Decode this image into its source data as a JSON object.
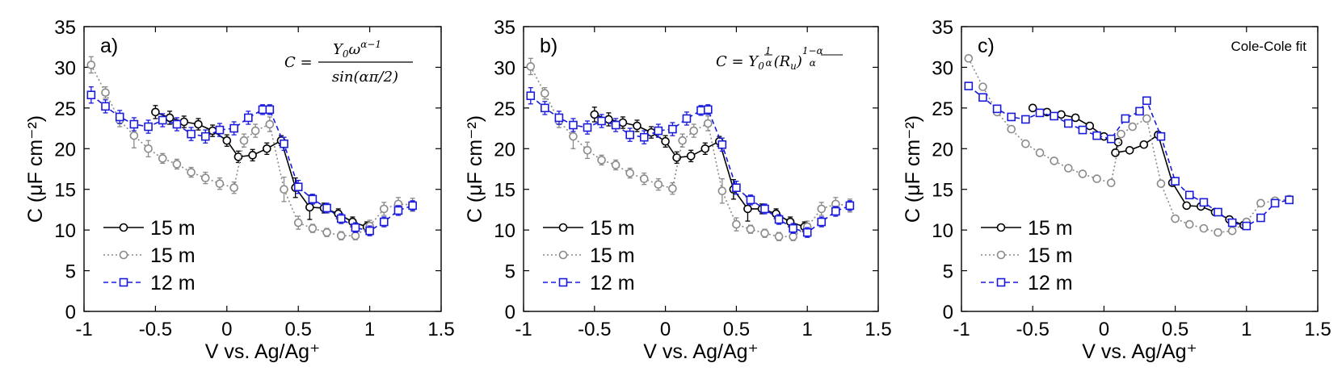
{
  "chart_data": [
    {
      "type": "line",
      "panel_label": "a)",
      "annotation": {
        "kind": "equation_a",
        "lhs": "C =",
        "num": "Y",
        "num_sub": "0",
        "num_omega": "ω",
        "num_sup": "α−1",
        "den": "sin(απ/2)"
      },
      "xlabel": "V vs. Ag/Ag⁺",
      "ylabel": "C (μF cm⁻²)",
      "xlim": [
        -1,
        1.5
      ],
      "ylim": [
        0,
        35
      ],
      "xticks": [
        "-1",
        "-0.5",
        "0",
        "0.5",
        "1",
        "1.5"
      ],
      "yticks": [
        "0",
        "5",
        "10",
        "15",
        "20",
        "25",
        "30",
        "35"
      ],
      "legend_position": "bottom-left",
      "grid": false,
      "series": [
        {
          "name": "15 m",
          "color": "#000000",
          "marker": "circle",
          "dash": "solid",
          "x": [
            -0.5,
            -0.4,
            -0.3,
            -0.2,
            -0.1,
            0.0,
            0.08,
            0.18,
            0.28,
            0.38,
            0.48,
            0.58,
            0.68,
            0.78,
            0.88,
            0.98
          ],
          "y": [
            24.5,
            23.8,
            23.3,
            23.0,
            22.2,
            21.0,
            19.0,
            19.2,
            20.0,
            21.0,
            15.2,
            12.8,
            12.7,
            12.0,
            11.0,
            10.4
          ],
          "err": [
            0.8,
            0.8,
            0.7,
            0.7,
            0.7,
            0.7,
            0.7,
            0.7,
            0.7,
            0.6,
            1.2,
            1.5,
            0.6,
            0.6,
            0.6,
            0.6
          ]
        },
        {
          "name": "15 m",
          "color": "#8a8a8a",
          "marker": "circle",
          "dash": "dotted",
          "x": [
            -0.95,
            -0.85,
            -0.75,
            -0.65,
            -0.55,
            -0.45,
            -0.35,
            -0.25,
            -0.15,
            -0.05,
            0.05,
            0.12,
            0.2,
            0.3,
            0.4,
            0.5,
            0.6,
            0.7,
            0.8,
            0.9,
            1.0,
            1.1,
            1.2,
            1.3
          ],
          "y": [
            30.3,
            26.9,
            23.5,
            21.6,
            20.0,
            18.8,
            18.1,
            17.1,
            16.4,
            15.7,
            15.2,
            21.0,
            22.2,
            23.0,
            15.0,
            10.9,
            10.2,
            9.7,
            9.3,
            9.3,
            10.5,
            12.6,
            13.2,
            13.1
          ],
          "err": [
            1.0,
            0.7,
            0.8,
            1.5,
            1.0,
            0.6,
            0.6,
            0.6,
            0.7,
            0.7,
            0.7,
            0.8,
            0.8,
            0.9,
            1.5,
            0.8,
            0.5,
            0.5,
            0.5,
            0.5,
            0.7,
            0.8,
            0.8,
            0.8
          ]
        },
        {
          "name": "12 m",
          "color": "#1a1adc",
          "marker": "square",
          "dash": "dashed",
          "x": [
            -0.95,
            -0.85,
            -0.75,
            -0.65,
            -0.55,
            -0.45,
            -0.35,
            -0.25,
            -0.15,
            -0.05,
            0.05,
            0.15,
            0.25,
            0.3,
            0.4,
            0.5,
            0.6,
            0.7,
            0.8,
            0.9,
            1.0,
            1.1,
            1.2,
            1.3
          ],
          "y": [
            26.6,
            25.2,
            23.9,
            23.0,
            22.7,
            23.5,
            23.0,
            21.8,
            21.5,
            22.3,
            22.5,
            23.8,
            24.8,
            24.8,
            20.6,
            15.3,
            13.8,
            12.7,
            11.4,
            10.3,
            9.9,
            11.0,
            12.4,
            13.0
          ],
          "err": [
            1.0,
            0.8,
            0.8,
            0.8,
            0.8,
            0.8,
            0.8,
            0.8,
            0.8,
            0.8,
            0.8,
            0.8,
            0.6,
            0.6,
            0.8,
            0.8,
            0.6,
            0.6,
            0.6,
            0.6,
            0.6,
            0.6,
            0.6,
            0.6
          ]
        }
      ]
    },
    {
      "type": "line",
      "panel_label": "b)",
      "annotation": {
        "kind": "equation_b",
        "lhs": "C = Y",
        "sub0": "0",
        "frac1_num": "1",
        "frac1_den": "α",
        "paren": "(R",
        "sub_u": "u",
        "paren_close": ")",
        "frac2_num": "1−α",
        "frac2_den": "α"
      },
      "xlabel": "V vs. Ag/Ag⁺",
      "ylabel": "C (μF cm⁻²)",
      "xlim": [
        -1,
        1.5
      ],
      "ylim": [
        0,
        35
      ],
      "xticks": [
        "-1",
        "-0.5",
        "0",
        "0.5",
        "1",
        "1.5"
      ],
      "yticks": [
        "0",
        "5",
        "10",
        "15",
        "20",
        "25",
        "30",
        "35"
      ],
      "legend_position": "bottom-left",
      "grid": false,
      "series": [
        {
          "name": "15 m",
          "color": "#000000",
          "marker": "circle",
          "dash": "solid",
          "x": [
            -0.5,
            -0.4,
            -0.3,
            -0.2,
            -0.1,
            0.0,
            0.08,
            0.18,
            0.28,
            0.38,
            0.48,
            0.58,
            0.68,
            0.78,
            0.88,
            0.98
          ],
          "y": [
            24.2,
            23.6,
            23.2,
            22.8,
            22.0,
            20.9,
            18.9,
            19.1,
            20.0,
            20.9,
            15.0,
            12.6,
            12.6,
            12.0,
            11.0,
            10.4
          ],
          "err": [
            0.9,
            0.8,
            0.7,
            0.7,
            0.7,
            0.7,
            0.7,
            0.7,
            0.7,
            0.6,
            1.2,
            1.5,
            0.6,
            0.6,
            0.6,
            0.6
          ]
        },
        {
          "name": "15 m",
          "color": "#8a8a8a",
          "marker": "circle",
          "dash": "dotted",
          "x": [
            -0.95,
            -0.85,
            -0.75,
            -0.65,
            -0.55,
            -0.45,
            -0.35,
            -0.25,
            -0.15,
            -0.05,
            0.05,
            0.12,
            0.2,
            0.3,
            0.4,
            0.5,
            0.6,
            0.7,
            0.8,
            0.9,
            1.0,
            1.1,
            1.2,
            1.3
          ],
          "y": [
            30.1,
            26.8,
            23.4,
            21.5,
            19.8,
            18.6,
            18.0,
            17.0,
            16.3,
            15.6,
            15.1,
            21.0,
            22.2,
            23.1,
            14.8,
            10.7,
            10.1,
            9.6,
            9.2,
            9.2,
            10.4,
            12.6,
            13.2,
            13.0
          ],
          "err": [
            1.0,
            0.7,
            0.8,
            1.5,
            1.0,
            0.6,
            0.6,
            0.6,
            0.7,
            0.7,
            0.7,
            0.8,
            0.8,
            0.9,
            1.5,
            0.8,
            0.5,
            0.5,
            0.5,
            0.5,
            0.7,
            0.8,
            0.8,
            0.8
          ]
        },
        {
          "name": "12 m",
          "color": "#1a1adc",
          "marker": "square",
          "dash": "dashed",
          "x": [
            -0.95,
            -0.85,
            -0.75,
            -0.65,
            -0.55,
            -0.45,
            -0.35,
            -0.25,
            -0.15,
            -0.05,
            0.05,
            0.15,
            0.25,
            0.3,
            0.4,
            0.5,
            0.6,
            0.7,
            0.8,
            0.9,
            1.0,
            1.1,
            1.2,
            1.3
          ],
          "y": [
            26.5,
            25.0,
            23.8,
            22.9,
            22.6,
            23.4,
            22.9,
            21.7,
            21.4,
            22.2,
            22.4,
            23.7,
            24.7,
            24.8,
            20.5,
            15.2,
            13.7,
            12.6,
            11.3,
            10.2,
            9.7,
            11.0,
            12.3,
            13.0
          ],
          "err": [
            1.0,
            0.8,
            0.8,
            0.8,
            0.8,
            0.8,
            0.8,
            0.8,
            0.8,
            0.8,
            0.8,
            0.8,
            0.6,
            0.6,
            0.8,
            0.8,
            0.6,
            0.6,
            0.6,
            0.6,
            0.6,
            0.6,
            0.6,
            0.6
          ]
        }
      ]
    },
    {
      "type": "line",
      "panel_label": "c)",
      "annotation": {
        "kind": "text",
        "text": "Cole-Cole fit"
      },
      "xlabel": "V vs. Ag/Ag⁺",
      "ylabel": "C (μF cm⁻²)",
      "xlim": [
        -1,
        1.5
      ],
      "ylim": [
        0,
        35
      ],
      "xticks": [
        "-1",
        "-0.5",
        "0",
        "0.5",
        "1",
        "1.5"
      ],
      "yticks": [
        "0",
        "5",
        "10",
        "15",
        "20",
        "25",
        "30",
        "35"
      ],
      "legend_position": "bottom-left",
      "grid": false,
      "series": [
        {
          "name": "15 m",
          "color": "#000000",
          "marker": "circle",
          "dash": "solid",
          "x": [
            -0.5,
            -0.4,
            -0.3,
            -0.2,
            -0.1,
            0.0,
            0.1,
            0.08,
            0.18,
            0.28,
            0.38,
            0.48,
            0.58,
            0.68,
            0.78,
            0.88,
            0.98
          ],
          "y": [
            25.0,
            24.5,
            24.2,
            23.8,
            22.8,
            21.5,
            20.8,
            19.5,
            19.8,
            20.5,
            21.7,
            15.8,
            13.0,
            12.9,
            12.2,
            11.3,
            10.6
          ],
          "err": null
        },
        {
          "name": "15 m",
          "color": "#8a8a8a",
          "marker": "circle",
          "dash": "dotted",
          "x": [
            -0.95,
            -0.85,
            -0.75,
            -0.65,
            -0.55,
            -0.45,
            -0.35,
            -0.25,
            -0.15,
            -0.05,
            0.05,
            0.12,
            0.2,
            0.3,
            0.4,
            0.5,
            0.6,
            0.7,
            0.8,
            0.9,
            1.0,
            1.1,
            1.2,
            1.3
          ],
          "y": [
            31.1,
            27.6,
            24.5,
            22.4,
            20.6,
            19.5,
            18.5,
            17.6,
            16.9,
            16.3,
            15.8,
            21.8,
            22.7,
            23.7,
            15.7,
            11.4,
            10.7,
            10.2,
            9.7,
            9.9,
            11.0,
            13.3,
            13.6,
            13.8
          ],
          "err": null
        },
        {
          "name": "12 m",
          "color": "#1a1adc",
          "marker": "square",
          "dash": "dashed",
          "x": [
            -0.95,
            -0.85,
            -0.75,
            -0.65,
            -0.55,
            -0.45,
            -0.35,
            -0.25,
            -0.15,
            -0.05,
            0.05,
            0.15,
            0.25,
            0.3,
            0.4,
            0.5,
            0.6,
            0.7,
            0.8,
            0.9,
            1.0,
            1.1,
            1.2,
            1.3
          ],
          "y": [
            27.7,
            26.3,
            24.9,
            23.9,
            23.6,
            24.4,
            24.0,
            23.1,
            22.3,
            21.6,
            21.2,
            23.7,
            24.6,
            25.9,
            21.5,
            16.0,
            14.3,
            13.4,
            12.2,
            10.9,
            10.5,
            11.5,
            13.3,
            13.7
          ],
          "err": null
        }
      ]
    }
  ]
}
